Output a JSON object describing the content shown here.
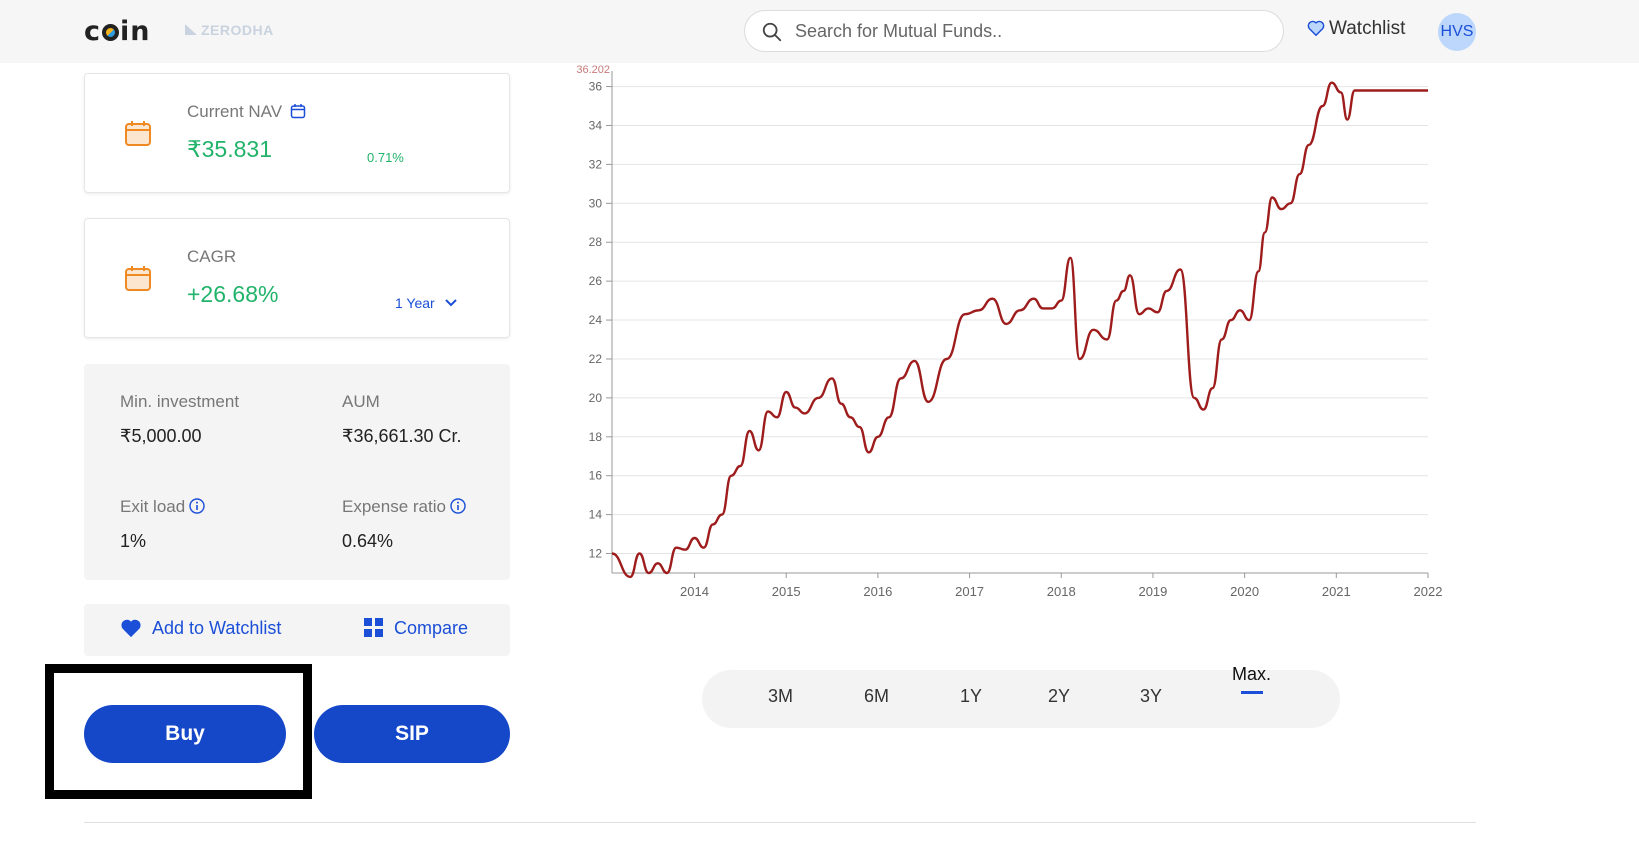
{
  "header": {
    "logo_text": "coin",
    "brand": "ZERODHA",
    "search_placeholder": "Search for Mutual Funds..",
    "watchlist_label": "Watchlist",
    "avatar_initials": "HVS"
  },
  "nav_card": {
    "label": "Current NAV",
    "value": "₹35.831",
    "change": "0.71%"
  },
  "cagr_card": {
    "label": "CAGR",
    "value": "+26.68%",
    "period": "1 Year"
  },
  "info": {
    "min_investment_label": "Min. investment",
    "min_investment_value": "₹5,000.00",
    "aum_label": "AUM",
    "aum_value": "₹36,661.30 Cr.",
    "exit_load_label": "Exit load",
    "exit_load_value": "1%",
    "expense_ratio_label": "Expense ratio",
    "expense_ratio_value": "0.64%"
  },
  "actions": {
    "watchlist_label": "Add to Watchlist",
    "compare_label": "Compare"
  },
  "buttons": {
    "buy": "Buy",
    "sip": "SIP"
  },
  "ranges": {
    "items": [
      "3M",
      "6M",
      "1Y",
      "2Y",
      "3Y"
    ],
    "active": "Max."
  },
  "colors": {
    "accent": "#1547c9",
    "positive": "#21b36a",
    "line": "#9e1c1c"
  },
  "chart_data": {
    "type": "line",
    "max_label": "36.202",
    "x_ticks": [
      "2014",
      "2015",
      "2016",
      "2017",
      "2018",
      "2019",
      "2020",
      "2021",
      "2022"
    ],
    "y_ticks": [
      12,
      14,
      16,
      18,
      20,
      22,
      24,
      26,
      28,
      30,
      32,
      34,
      36
    ],
    "xlim": [
      2013.1,
      2022.0
    ],
    "ylim": [
      11.0,
      36.8
    ],
    "grid": true,
    "series": [
      {
        "x": [
          2013.1,
          2013.3,
          2013.4,
          2013.5,
          2013.6,
          2013.7,
          2013.8,
          2013.9,
          2014.0,
          2014.1,
          2014.2,
          2014.3,
          2014.4,
          2014.5,
          2014.6,
          2014.7,
          2014.8,
          2014.9,
          2015.0,
          2015.1,
          2015.2,
          2015.35,
          2015.5,
          2015.6,
          2015.7,
          2015.8,
          2015.9,
          2016.0,
          2016.12,
          2016.25,
          2016.4,
          2016.55,
          2016.75,
          2016.95,
          2017.1,
          2017.25,
          2017.4,
          2017.55,
          2017.7,
          2017.8,
          2017.9,
          2018.0,
          2018.1,
          2018.2,
          2018.35,
          2018.5,
          2018.6,
          2018.68,
          2018.75,
          2018.85,
          2018.95,
          2019.05,
          2019.15,
          2019.3,
          2019.45,
          2019.55,
          2019.65,
          2019.75,
          2019.85,
          2019.95,
          2020.05,
          2020.15,
          2020.22,
          2020.3,
          2020.4,
          2020.5,
          2020.6,
          2020.7,
          2020.85,
          2020.95,
          2021.05,
          2021.12,
          2021.2,
          2021.3,
          2021.4,
          2021.5,
          2021.6,
          2021.7,
          2021.8,
          2021.9,
          2022.0
        ],
        "y": [
          12.0,
          10.8,
          12.0,
          11.0,
          11.5,
          11.0,
          12.3,
          12.2,
          12.8,
          12.3,
          13.5,
          14.0,
          16.0,
          16.5,
          18.3,
          17.3,
          19.3,
          19.0,
          20.3,
          19.5,
          19.2,
          20.0,
          21.0,
          19.7,
          19.0,
          18.5,
          17.2,
          18.0,
          19.0,
          21.0,
          21.9,
          19.8,
          22.0,
          24.3,
          24.5,
          25.1,
          23.8,
          24.5,
          25.1,
          24.6,
          24.6,
          25.0,
          27.2,
          22.0,
          23.5,
          23.0,
          25.0,
          25.5,
          26.3,
          24.3,
          24.6,
          24.4,
          25.5,
          26.6,
          20.0,
          19.4,
          20.5,
          23.0,
          24.0,
          24.5,
          24.0,
          26.5,
          28.5,
          30.3,
          29.7,
          30.0,
          31.5,
          33.0,
          35.0,
          36.2,
          35.7,
          34.3,
          35.8,
          35.8,
          35.8,
          35.8,
          35.8,
          35.8,
          35.8,
          35.8,
          35.8
        ]
      }
    ]
  }
}
